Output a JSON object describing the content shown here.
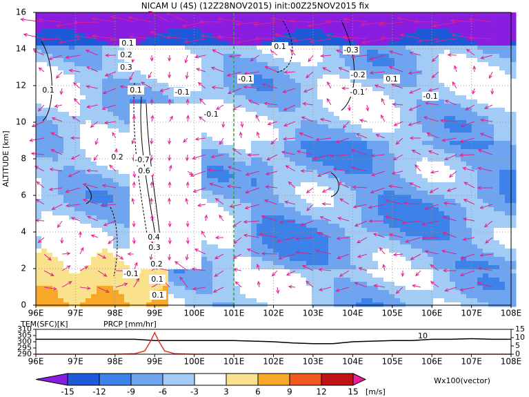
{
  "title": "NICAM U (4S) (12Z28NOV2015) init:00Z25NOV2015 fix",
  "chart_data": [
    {
      "type": "contour",
      "ylabel": "ALTITUDE [km]",
      "xlim": [
        96,
        108
      ],
      "ylim": [
        0,
        16
      ],
      "xticks": [
        {
          "value": 96,
          "label": "96E"
        },
        {
          "value": 97,
          "label": "97E"
        },
        {
          "value": 98,
          "label": "98E"
        },
        {
          "value": 99,
          "label": "99E"
        },
        {
          "value": 100,
          "label": "100E"
        },
        {
          "value": 101,
          "label": "101E"
        },
        {
          "value": 102,
          "label": "102E"
        },
        {
          "value": 103,
          "label": "103E"
        },
        {
          "value": 104,
          "label": "104E"
        },
        {
          "value": 105,
          "label": "105E"
        },
        {
          "value": 106,
          "label": "106E"
        },
        {
          "value": 107,
          "label": "107E"
        },
        {
          "value": 108,
          "label": "108E"
        }
      ],
      "yticks": [
        0,
        2,
        4,
        6,
        8,
        10,
        12,
        14,
        16
      ],
      "grid": true,
      "vline": 101,
      "vline_color": "#20b020",
      "vector_color": "#e0208e",
      "contour_labels": [
        "0.1",
        "0.2",
        "0.3",
        "0.1",
        "0.1",
        "-0.1",
        "-0.1",
        "-0.1",
        "0.1",
        "-0.3",
        "-0.2",
        "-0.1",
        "0.1",
        "-0.1",
        "0.2",
        "-0.7",
        "0.6",
        "0.4",
        "0.3",
        "0.2",
        "-0.1",
        "0.1",
        "0.1"
      ]
    },
    {
      "type": "line",
      "xlim": [
        96,
        108
      ],
      "ylim": [
        290,
        310
      ],
      "y2lim": [
        0,
        15
      ],
      "xticks": [
        {
          "value": 96,
          "label": "96E"
        },
        {
          "value": 97,
          "label": "97E"
        },
        {
          "value": 98,
          "label": "98E"
        },
        {
          "value": 99,
          "label": "99E"
        },
        {
          "value": 100,
          "label": "100E"
        },
        {
          "value": 101,
          "label": "101E"
        },
        {
          "value": 102,
          "label": "102E"
        },
        {
          "value": 103,
          "label": "103E"
        },
        {
          "value": 104,
          "label": "104E"
        },
        {
          "value": 105,
          "label": "105E"
        },
        {
          "value": 106,
          "label": "106E"
        },
        {
          "value": 107,
          "label": "107E"
        },
        {
          "value": 108,
          "label": "108E"
        }
      ],
      "yticks": [
        290,
        295,
        300,
        305,
        310
      ],
      "y2ticks": [
        0,
        5,
        10,
        15
      ],
      "annotation": "10",
      "series": [
        {
          "name": "TEM(SFC)[K]",
          "color": "#000000",
          "x": [
            96,
            96.5,
            97,
            97.5,
            98,
            98.5,
            99,
            99.5,
            100,
            100.5,
            101,
            101.5,
            102,
            102.5,
            103,
            103.5,
            104,
            104.5,
            105,
            105.5,
            106,
            106.5,
            107,
            107.5,
            108
          ],
          "values": [
            302,
            302,
            302,
            302,
            302,
            302,
            301,
            301,
            301,
            301,
            301,
            300.5,
            300,
            299,
            298.5,
            298.5,
            300,
            300.5,
            301,
            301,
            302,
            302,
            302.5,
            302,
            302
          ]
        },
        {
          "name": "PRCP [mm/hr]",
          "color": "#e03020",
          "axis": "y2",
          "x": [
            96,
            97,
            98,
            98.5,
            98.75,
            98.9,
            99,
            99.1,
            99.25,
            99.5,
            100,
            101,
            102,
            103,
            104,
            105,
            106,
            107,
            108
          ],
          "values": [
            0,
            0,
            0,
            0.3,
            2,
            8,
            13,
            8,
            2,
            0.3,
            0,
            0,
            0,
            0,
            0,
            0,
            0,
            0,
            0
          ]
        }
      ]
    }
  ],
  "colorbar": {
    "levels": [
      -15,
      -12,
      -9,
      -6,
      -3,
      3,
      6,
      9,
      12,
      15
    ],
    "colors": [
      "#8a1ee0",
      "#1e5ad8",
      "#3c82e8",
      "#6ea4f0",
      "#a2ccf6",
      "#ffffff",
      "#fae28c",
      "#f8a828",
      "#f05a1e",
      "#c01414",
      "#f01e96"
    ],
    "units": "[m/s]",
    "vector_label": "Wx100(vector)",
    "vector_label_color": "#e0208e"
  }
}
